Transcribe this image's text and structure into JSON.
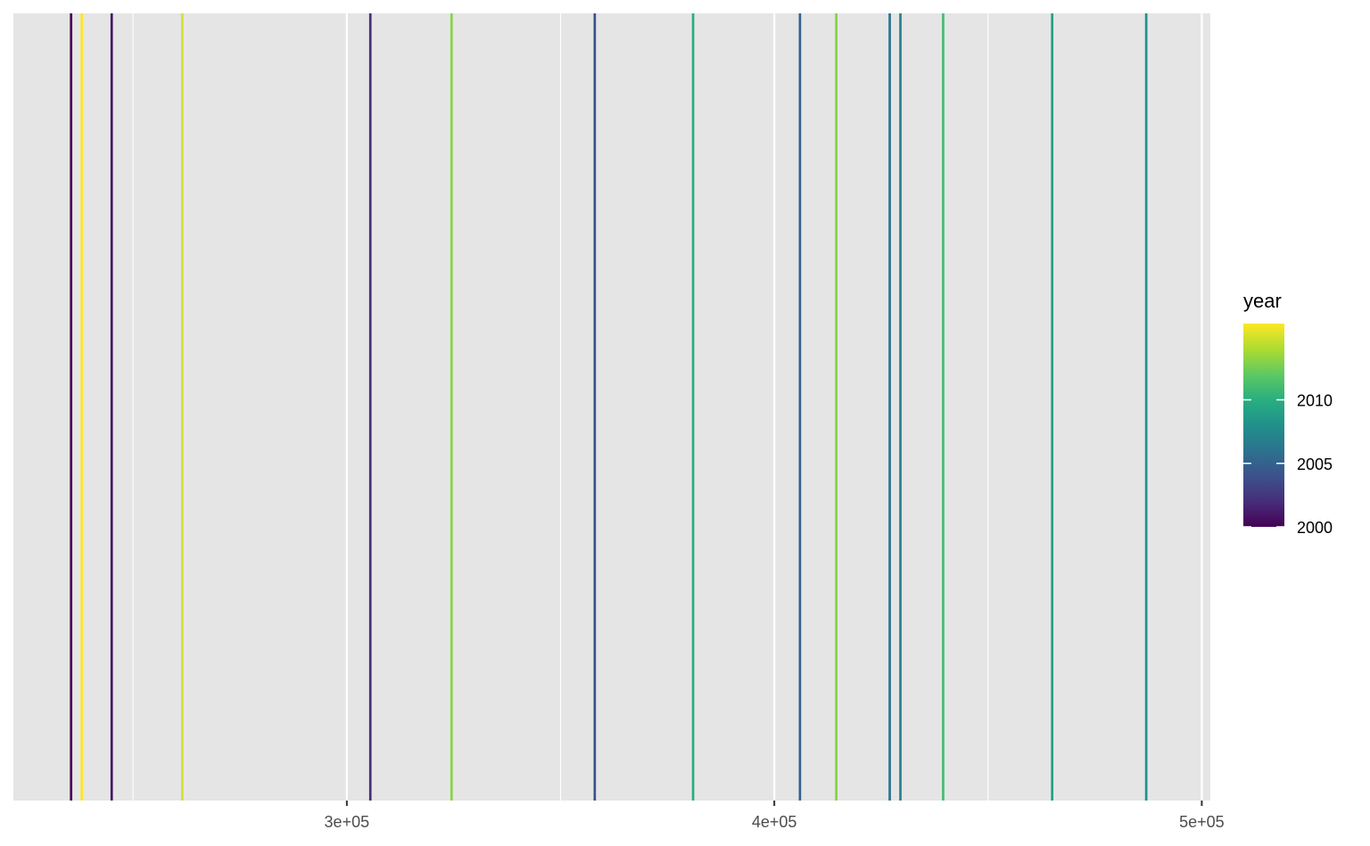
{
  "chart_data": {
    "type": "line",
    "geom": "vline",
    "x_axis": {
      "range": [
        222000,
        502000
      ],
      "major_ticks": [
        300000,
        400000,
        500000
      ],
      "minor_breaks": [
        250000,
        350000,
        450000
      ],
      "tick_labels": [
        "3e+05",
        "4e+05",
        "5e+05"
      ]
    },
    "lines": [
      {
        "x": 235500,
        "year": 2000
      },
      {
        "x": 238000,
        "year": 2016
      },
      {
        "x": 245000,
        "year": 2001
      },
      {
        "x": 261500,
        "year": 2015
      },
      {
        "x": 305500,
        "year": 2002
      },
      {
        "x": 324500,
        "year": 2013
      },
      {
        "x": 358000,
        "year": 2004
      },
      {
        "x": 381000,
        "year": 2010
      },
      {
        "x": 406000,
        "year": 2005
      },
      {
        "x": 414500,
        "year": 2013
      },
      {
        "x": 427000,
        "year": 2006
      },
      {
        "x": 429500,
        "year": 2007
      },
      {
        "x": 439500,
        "year": 2011
      },
      {
        "x": 465000,
        "year": 2009
      },
      {
        "x": 487000,
        "year": 2008
      }
    ],
    "legend": {
      "title": "year",
      "position": "right",
      "range": [
        2000,
        2016
      ],
      "breaks": [
        2000,
        2005,
        2010
      ],
      "labels": [
        "2000",
        "2005",
        "2010"
      ]
    },
    "colors": {
      "panel": "#e5e5e5",
      "grid": "#ffffff",
      "palette": "viridis"
    },
    "grid": true
  }
}
